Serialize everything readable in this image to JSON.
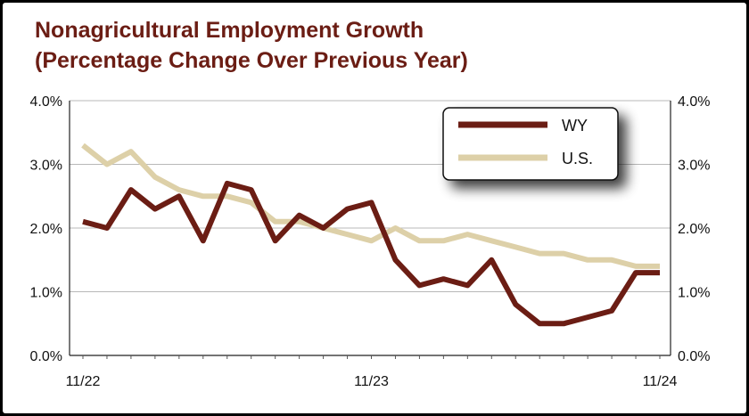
{
  "chart_data": {
    "type": "line",
    "title_line1": "Nonagricultural Employment Growth",
    "title_line2": "(Percentage Change Over Previous Year)",
    "xlabel": "",
    "ylabel": "",
    "x": [
      "11/22",
      "12/22",
      "1/23",
      "2/23",
      "3/23",
      "4/23",
      "5/23",
      "6/23",
      "7/23",
      "8/23",
      "9/23",
      "10/23",
      "11/23",
      "12/23",
      "1/24",
      "2/24",
      "3/24",
      "4/24",
      "5/24",
      "6/24",
      "7/24",
      "8/24",
      "9/24",
      "10/24",
      "11/24"
    ],
    "x_tick_labels": [
      "11/22",
      "11/23",
      "11/24"
    ],
    "y_tick_labels": [
      "0.0%",
      "1.0%",
      "2.0%",
      "3.0%",
      "4.0%"
    ],
    "ylim": [
      0,
      4
    ],
    "grid": true,
    "legend_position": "top-right",
    "series": [
      {
        "name": "WY",
        "color": "#6b1d14",
        "values": [
          2.1,
          2.0,
          2.6,
          2.3,
          2.5,
          1.8,
          2.7,
          2.6,
          1.8,
          2.2,
          2.0,
          2.3,
          2.4,
          1.5,
          1.1,
          1.2,
          1.1,
          1.5,
          0.8,
          0.5,
          0.5,
          0.6,
          0.7,
          1.3,
          1.3
        ]
      },
      {
        "name": "U.S.",
        "color": "#ddd0a8",
        "values": [
          3.3,
          3.0,
          3.2,
          2.8,
          2.6,
          2.5,
          2.5,
          2.4,
          2.1,
          2.1,
          2.0,
          1.9,
          1.8,
          2.0,
          1.8,
          1.8,
          1.9,
          1.8,
          1.7,
          1.6,
          1.6,
          1.5,
          1.5,
          1.4,
          1.4
        ]
      }
    ]
  }
}
